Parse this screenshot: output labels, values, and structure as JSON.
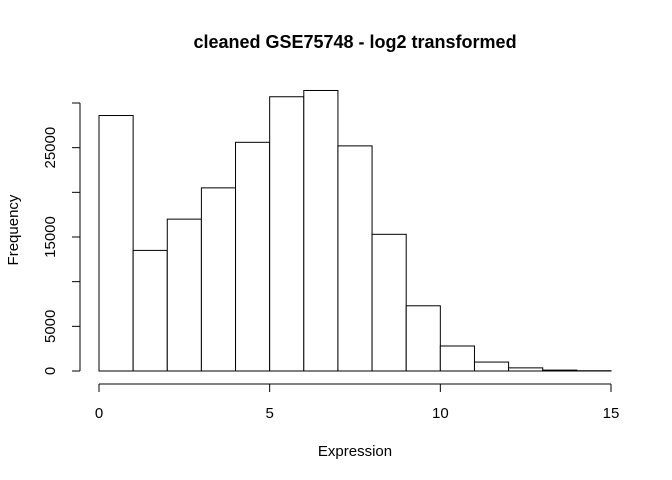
{
  "chart_data": {
    "type": "bar",
    "title": "cleaned GSE75748 - log2 transformed",
    "xlabel": "Expression",
    "ylabel": "Frequency",
    "bins": [
      {
        "start": 0,
        "end": 1,
        "count": 28600
      },
      {
        "start": 1,
        "end": 2,
        "count": 13500
      },
      {
        "start": 2,
        "end": 3,
        "count": 17000
      },
      {
        "start": 3,
        "end": 4,
        "count": 20500
      },
      {
        "start": 4,
        "end": 5,
        "count": 25600
      },
      {
        "start": 5,
        "end": 6,
        "count": 30700
      },
      {
        "start": 6,
        "end": 7,
        "count": 31400
      },
      {
        "start": 7,
        "end": 8,
        "count": 25200
      },
      {
        "start": 8,
        "end": 9,
        "count": 15300
      },
      {
        "start": 9,
        "end": 10,
        "count": 7300
      },
      {
        "start": 10,
        "end": 11,
        "count": 2800
      },
      {
        "start": 11,
        "end": 12,
        "count": 1000
      },
      {
        "start": 12,
        "end": 13,
        "count": 350
      },
      {
        "start": 13,
        "end": 14,
        "count": 100
      },
      {
        "start": 14,
        "end": 15,
        "count": 30
      }
    ],
    "xlim": [
      0,
      15
    ],
    "ylim": [
      0,
      30000
    ],
    "x_ticks": [
      "0",
      "5",
      "10",
      "15"
    ],
    "y_ticks": [
      "0",
      "5000",
      "15000",
      "25000"
    ],
    "grid": false,
    "legend": "none"
  }
}
